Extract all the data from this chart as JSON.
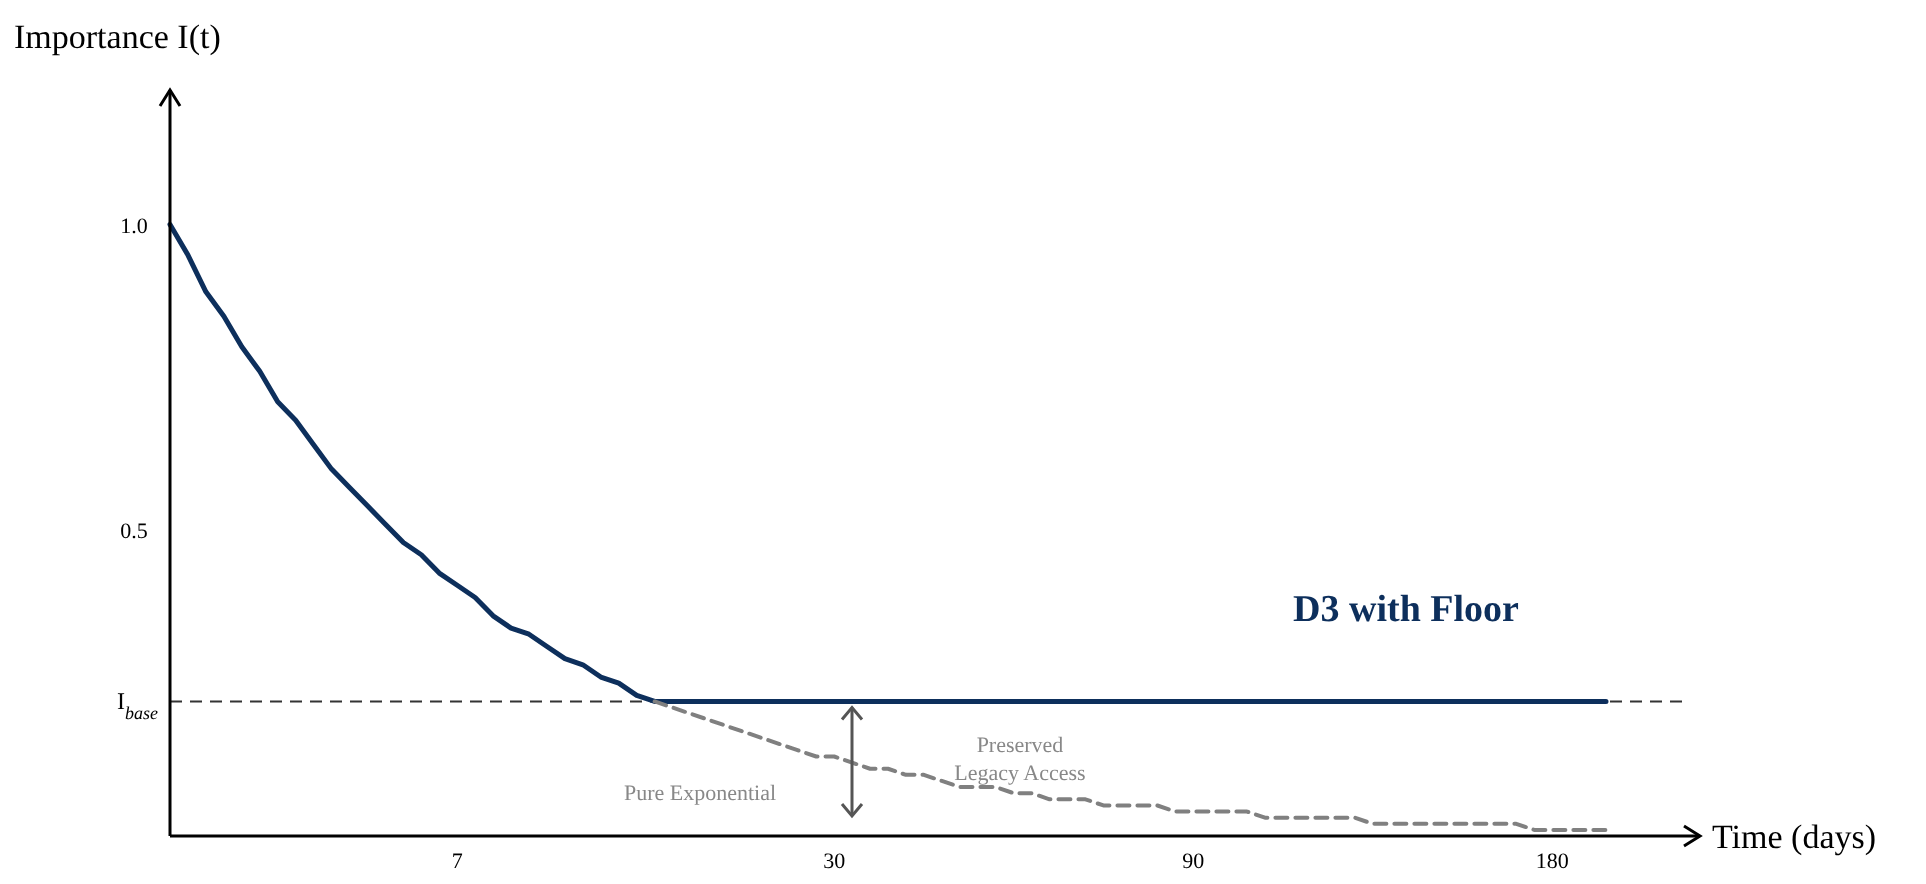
{
  "chart_data": {
    "type": "line",
    "ylabel": "Importance I(t)",
    "xlabel": "Time (days)",
    "categories": [
      null,
      null,
      null,
      null,
      null,
      null,
      null,
      null,
      null,
      null,
      null,
      null,
      null,
      null,
      null,
      null,
      "7",
      null,
      null,
      null,
      null,
      null,
      null,
      null,
      null,
      null,
      null,
      null,
      null,
      null,
      null,
      null,
      null,
      null,
      null,
      null,
      null,
      "30",
      null,
      null,
      null,
      null,
      null,
      null,
      null,
      null,
      null,
      null,
      null,
      null,
      null,
      null,
      null,
      null,
      null,
      null,
      null,
      "90",
      null,
      null,
      null,
      null,
      null,
      null,
      null,
      null,
      null,
      null,
      null,
      null,
      null,
      null,
      null,
      null,
      null,
      null,
      null,
      "180",
      null,
      null,
      null
    ],
    "ylim": [
      0,
      1.22
    ],
    "yticks": [
      {
        "value": 1,
        "label": "1.0"
      },
      0.5
    ],
    "grid": false,
    "marker": "none",
    "series": [
      {
        "name": "D3 with Floor",
        "color": "#0d2f5c",
        "line_style": "solid",
        "values": [
          1.0,
          0.95,
          0.89,
          0.85,
          0.8,
          0.76,
          0.71,
          0.68,
          0.64,
          0.6,
          0.57,
          0.54,
          0.51,
          0.48,
          0.46,
          0.43,
          0.41,
          0.39,
          0.36,
          0.34,
          0.33,
          0.31,
          0.29,
          0.28,
          0.26,
          0.25,
          0.23,
          0.22,
          0.22,
          0.22,
          0.22,
          0.22,
          0.22,
          0.22,
          0.22,
          0.22,
          0.22,
          0.22,
          0.22,
          0.22,
          0.22,
          0.22,
          0.22,
          0.22,
          0.22,
          0.22,
          0.22,
          0.22,
          0.22,
          0.22,
          0.22,
          0.22,
          0.22,
          0.22,
          0.22,
          0.22,
          0.22,
          0.22,
          0.22,
          0.22,
          0.22,
          0.22,
          0.22,
          0.22,
          0.22,
          0.22,
          0.22,
          0.22,
          0.22,
          0.22,
          0.22,
          0.22,
          0.22,
          0.22,
          0.22,
          0.22,
          0.22,
          0.22,
          0.22,
          0.22,
          0.22
        ]
      },
      {
        "color": "#808080",
        "line_style": "dashed",
        "values": [
          null,
          null,
          null,
          null,
          null,
          null,
          null,
          null,
          null,
          null,
          null,
          null,
          null,
          null,
          null,
          null,
          null,
          null,
          null,
          null,
          null,
          null,
          null,
          null,
          null,
          null,
          null,
          0.22,
          0.21,
          0.2,
          0.19,
          0.18,
          0.17,
          0.16,
          0.15,
          0.14,
          0.13,
          0.13,
          0.12,
          0.11,
          0.11,
          0.1,
          0.1,
          0.09,
          0.08,
          0.08,
          0.08,
          0.07,
          0.07,
          0.06,
          0.06,
          0.06,
          0.05,
          0.05,
          0.05,
          0.05,
          0.04,
          0.04,
          0.04,
          0.04,
          0.04,
          0.03,
          0.03,
          0.03,
          0.03,
          0.03,
          0.03,
          0.02,
          0.02,
          0.02,
          0.02,
          0.02,
          0.02,
          0.02,
          0.02,
          0.02,
          0.01,
          0.01,
          0.01,
          0.01,
          0.01
        ]
      }
    ],
    "ref_lines": [
      {
        "axis": "y",
        "value": 0.22,
        "label": "I$_{base}$",
        "color": "#333333",
        "line_style": "dashed"
      }
    ],
    "annotations": [
      "Pure Exponential",
      "Preserved\nLegacy Access"
    ]
  }
}
